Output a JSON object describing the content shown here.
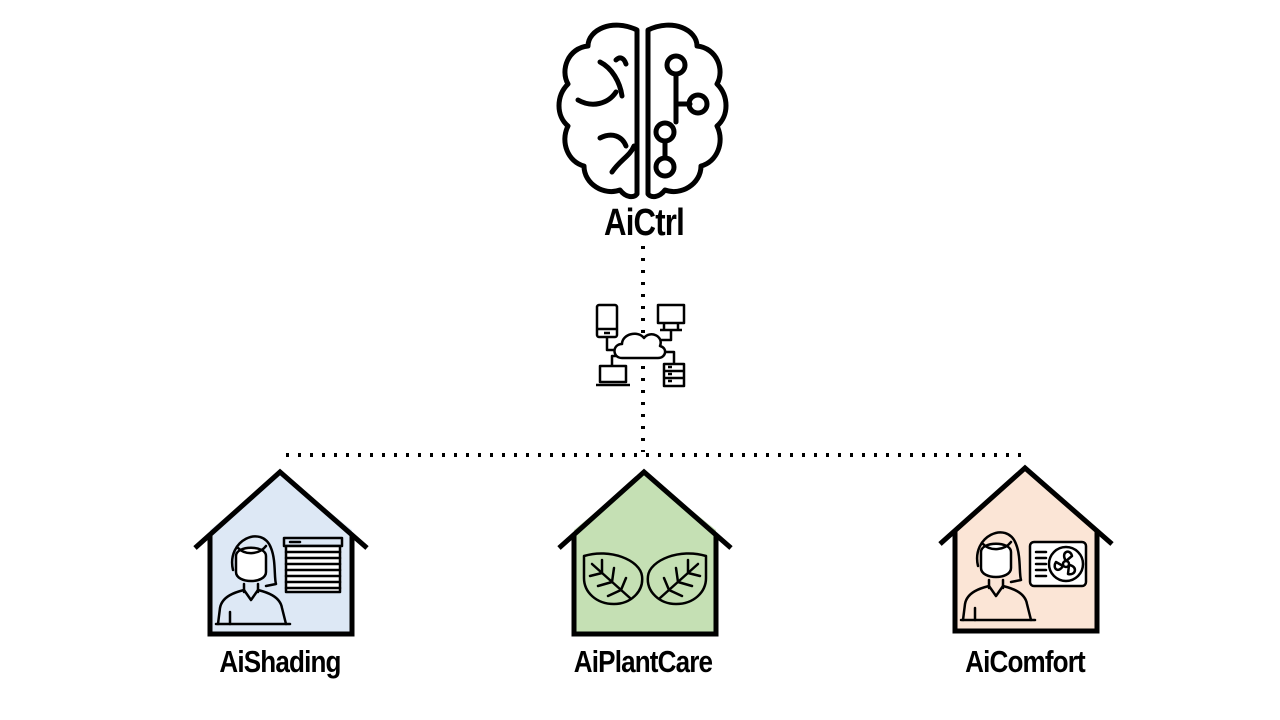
{
  "controller": {
    "label": "AiCtrl",
    "icon": "brain-circuit-icon"
  },
  "network": {
    "icon": "cloud-network-icon"
  },
  "houses": [
    {
      "label": "AiShading",
      "icon": "person-window-blinds-icon",
      "fill": "#dde8f5"
    },
    {
      "label": "AiPlantCare",
      "icon": "leaves-icon",
      "fill": "#c5e0b4"
    },
    {
      "label": "AiComfort",
      "icon": "person-air-conditioner-icon",
      "fill": "#fbe5d6"
    }
  ],
  "colors": {
    "stroke": "#000000",
    "background": "#ffffff"
  }
}
